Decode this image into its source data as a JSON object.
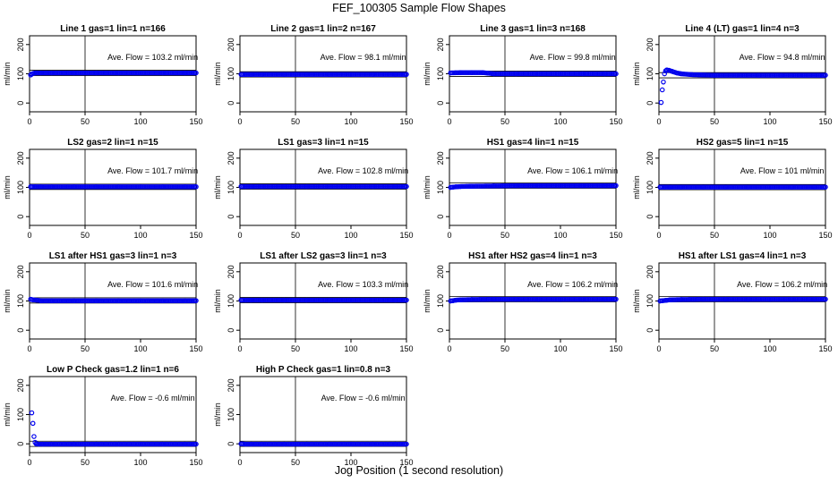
{
  "figure": {
    "title": "FEF_100305  Sample Flow Shapes",
    "xlabel": "Jog Position (1 second resolution)"
  },
  "chart_data": [
    {
      "type": "scatter",
      "title": "Line 1 gas=1 lin=1 n=166",
      "ylabel": "ml/min",
      "annotation": "Ave. Flow = 103.2  ml/min",
      "xlim": [
        0,
        150
      ],
      "ylim": [
        -30,
        230
      ],
      "xticks": [
        0,
        50,
        100,
        150
      ],
      "yticks": [
        0,
        100,
        200
      ],
      "vline": 50,
      "hlines": [
        94,
        112
      ],
      "points": [
        [
          1,
          96
        ],
        [
          2,
          99
        ],
        [
          3,
          101
        ],
        [
          5,
          103
        ],
        [
          10,
          103
        ],
        [
          20,
          103
        ],
        [
          40,
          103
        ],
        [
          60,
          103
        ],
        [
          80,
          103
        ],
        [
          100,
          103
        ],
        [
          120,
          103
        ],
        [
          140,
          103
        ],
        [
          150,
          103
        ]
      ]
    },
    {
      "type": "scatter",
      "title": "Line 2 gas=1 lin=2 n=167",
      "ylabel": "ml/min",
      "annotation": "Ave. Flow = 98.1  ml/min",
      "xlim": [
        0,
        150
      ],
      "ylim": [
        -30,
        230
      ],
      "xticks": [
        0,
        50,
        100,
        150
      ],
      "yticks": [
        0,
        100,
        200
      ],
      "vline": 50,
      "hlines": [
        89,
        107
      ],
      "points": [
        [
          1,
          98
        ],
        [
          5,
          98
        ],
        [
          10,
          98
        ],
        [
          20,
          98
        ],
        [
          40,
          98
        ],
        [
          60,
          98
        ],
        [
          80,
          98
        ],
        [
          100,
          98
        ],
        [
          120,
          98
        ],
        [
          140,
          98
        ],
        [
          150,
          98
        ]
      ]
    },
    {
      "type": "scatter",
      "title": "Line 3 gas=1 lin=3 n=168",
      "ylabel": "ml/min",
      "annotation": "Ave. Flow = 99.8  ml/min",
      "xlim": [
        0,
        150
      ],
      "ylim": [
        -30,
        230
      ],
      "xticks": [
        0,
        50,
        100,
        150
      ],
      "yticks": [
        0,
        100,
        200
      ],
      "vline": 50,
      "hlines": [
        91,
        109
      ],
      "points": [
        [
          1,
          103
        ],
        [
          10,
          104
        ],
        [
          20,
          104
        ],
        [
          30,
          104
        ],
        [
          35,
          102
        ],
        [
          40,
          100
        ],
        [
          60,
          100
        ],
        [
          80,
          100
        ],
        [
          100,
          100
        ],
        [
          120,
          100
        ],
        [
          140,
          100
        ],
        [
          150,
          100
        ]
      ]
    },
    {
      "type": "scatter",
      "title": "Line 4 (LT) gas=1 lin=4 n=3",
      "ylabel": "ml/min",
      "annotation": "Ave. Flow = 94.8  ml/min",
      "xlim": [
        0,
        150
      ],
      "ylim": [
        -30,
        230
      ],
      "xticks": [
        0,
        50,
        100,
        150
      ],
      "yticks": [
        0,
        100,
        200
      ],
      "vline": 50,
      "hlines": [
        86,
        104
      ],
      "points": [
        [
          2,
          2
        ],
        [
          3,
          45
        ],
        [
          4,
          72
        ],
        [
          5,
          100
        ],
        [
          6,
          110
        ],
        [
          7,
          113
        ],
        [
          9,
          112
        ],
        [
          12,
          108
        ],
        [
          16,
          103
        ],
        [
          20,
          100
        ],
        [
          30,
          97
        ],
        [
          50,
          95
        ],
        [
          70,
          95
        ],
        [
          90,
          95
        ],
        [
          110,
          95
        ],
        [
          130,
          95
        ],
        [
          150,
          95
        ]
      ]
    },
    {
      "type": "scatter",
      "title": "LS2 gas=2 lin=1 n=15",
      "ylabel": "ml/min",
      "annotation": "Ave. Flow = 101.7  ml/min",
      "xlim": [
        0,
        150
      ],
      "ylim": [
        -30,
        230
      ],
      "xticks": [
        0,
        50,
        100,
        150
      ],
      "yticks": [
        0,
        100,
        200
      ],
      "vline": 50,
      "hlines": [
        93,
        111
      ],
      "points": [
        [
          1,
          102
        ],
        [
          5,
          102
        ],
        [
          10,
          102
        ],
        [
          20,
          102
        ],
        [
          40,
          102
        ],
        [
          60,
          102
        ],
        [
          80,
          102
        ],
        [
          100,
          102
        ],
        [
          120,
          102
        ],
        [
          140,
          102
        ],
        [
          150,
          102
        ]
      ]
    },
    {
      "type": "scatter",
      "title": "LS1 gas=3 lin=1 n=15",
      "ylabel": "ml/min",
      "annotation": "Ave. Flow = 102.8  ml/min",
      "xlim": [
        0,
        150
      ],
      "ylim": [
        -30,
        230
      ],
      "xticks": [
        0,
        50,
        100,
        150
      ],
      "yticks": [
        0,
        100,
        200
      ],
      "vline": 50,
      "hlines": [
        94,
        112
      ],
      "points": [
        [
          1,
          103
        ],
        [
          5,
          103
        ],
        [
          10,
          103
        ],
        [
          20,
          103
        ],
        [
          40,
          103
        ],
        [
          60,
          103
        ],
        [
          80,
          103
        ],
        [
          100,
          103
        ],
        [
          120,
          103
        ],
        [
          140,
          103
        ],
        [
          150,
          103
        ]
      ]
    },
    {
      "type": "scatter",
      "title": "HS1 gas=4 lin=1 n=15",
      "ylabel": "ml/min",
      "annotation": "Ave. Flow = 106.1  ml/min",
      "xlim": [
        0,
        150
      ],
      "ylim": [
        -30,
        230
      ],
      "xticks": [
        0,
        50,
        100,
        150
      ],
      "yticks": [
        0,
        100,
        200
      ],
      "vline": 50,
      "hlines": [
        97,
        115
      ],
      "points": [
        [
          1,
          100
        ],
        [
          3,
          101
        ],
        [
          6,
          102
        ],
        [
          10,
          103
        ],
        [
          20,
          104
        ],
        [
          40,
          105
        ],
        [
          60,
          106
        ],
        [
          80,
          106
        ],
        [
          100,
          106
        ],
        [
          120,
          106
        ],
        [
          140,
          106
        ],
        [
          150,
          106
        ]
      ]
    },
    {
      "type": "scatter",
      "title": "HS2 gas=5 lin=1 n=15",
      "ylabel": "ml/min",
      "annotation": "Ave. Flow = 101  ml/min",
      "xlim": [
        0,
        150
      ],
      "ylim": [
        -30,
        230
      ],
      "xticks": [
        0,
        50,
        100,
        150
      ],
      "yticks": [
        0,
        100,
        200
      ],
      "vline": 50,
      "hlines": [
        92,
        110
      ],
      "points": [
        [
          1,
          101
        ],
        [
          5,
          101
        ],
        [
          10,
          101
        ],
        [
          20,
          101
        ],
        [
          40,
          101
        ],
        [
          60,
          101
        ],
        [
          80,
          101
        ],
        [
          100,
          101
        ],
        [
          120,
          101
        ],
        [
          140,
          101
        ],
        [
          150,
          101
        ]
      ]
    },
    {
      "type": "scatter",
      "title": "LS1 after HS1 gas=3 lin=1 n=3",
      "ylabel": "ml/min",
      "annotation": "Ave. Flow = 101.6  ml/min",
      "xlim": [
        0,
        150
      ],
      "ylim": [
        -30,
        230
      ],
      "xticks": [
        0,
        50,
        100,
        150
      ],
      "yticks": [
        0,
        100,
        200
      ],
      "vline": 50,
      "hlines": [
        93,
        111
      ],
      "points": [
        [
          1,
          106
        ],
        [
          3,
          104
        ],
        [
          6,
          103
        ],
        [
          10,
          101
        ],
        [
          20,
          101
        ],
        [
          40,
          101
        ],
        [
          60,
          101
        ],
        [
          80,
          101
        ],
        [
          100,
          101
        ],
        [
          120,
          101
        ],
        [
          140,
          101
        ],
        [
          150,
          101
        ]
      ]
    },
    {
      "type": "scatter",
      "title": "LS1 after LS2 gas=3 lin=1 n=3",
      "ylabel": "ml/min",
      "annotation": "Ave. Flow = 103.3  ml/min",
      "xlim": [
        0,
        150
      ],
      "ylim": [
        -30,
        230
      ],
      "xticks": [
        0,
        50,
        100,
        150
      ],
      "yticks": [
        0,
        100,
        200
      ],
      "vline": 50,
      "hlines": [
        94,
        112
      ],
      "points": [
        [
          1,
          103
        ],
        [
          5,
          103
        ],
        [
          10,
          103
        ],
        [
          20,
          103
        ],
        [
          40,
          103
        ],
        [
          60,
          103
        ],
        [
          80,
          103
        ],
        [
          100,
          103
        ],
        [
          120,
          103
        ],
        [
          140,
          103
        ],
        [
          150,
          103
        ]
      ]
    },
    {
      "type": "scatter",
      "title": "HS1 after HS2 gas=4 lin=1 n=3",
      "ylabel": "ml/min",
      "annotation": "Ave. Flow = 106.2  ml/min",
      "xlim": [
        0,
        150
      ],
      "ylim": [
        -30,
        230
      ],
      "xticks": [
        0,
        50,
        100,
        150
      ],
      "yticks": [
        0,
        100,
        200
      ],
      "vline": 50,
      "hlines": [
        97,
        115
      ],
      "points": [
        [
          1,
          100
        ],
        [
          3,
          101
        ],
        [
          6,
          103
        ],
        [
          10,
          104
        ],
        [
          20,
          105
        ],
        [
          40,
          106
        ],
        [
          60,
          106
        ],
        [
          80,
          106
        ],
        [
          100,
          106
        ],
        [
          120,
          106
        ],
        [
          140,
          106
        ],
        [
          150,
          106
        ]
      ]
    },
    {
      "type": "scatter",
      "title": "HS1 after LS1 gas=4 lin=1 n=3",
      "ylabel": "ml/min",
      "annotation": "Ave. Flow = 106.2  ml/min",
      "xlim": [
        0,
        150
      ],
      "ylim": [
        -30,
        230
      ],
      "xticks": [
        0,
        50,
        100,
        150
      ],
      "yticks": [
        0,
        100,
        200
      ],
      "vline": 50,
      "hlines": [
        97,
        115
      ],
      "points": [
        [
          1,
          100
        ],
        [
          3,
          101
        ],
        [
          6,
          102
        ],
        [
          10,
          104
        ],
        [
          20,
          105
        ],
        [
          40,
          106
        ],
        [
          60,
          106
        ],
        [
          80,
          106
        ],
        [
          100,
          106
        ],
        [
          120,
          106
        ],
        [
          140,
          106
        ],
        [
          150,
          106
        ]
      ]
    },
    {
      "type": "scatter",
      "title": "Low P Check gas=1.2 lin=1 n=6",
      "ylabel": "ml/min",
      "annotation": "Ave. Flow = -0.6  ml/min",
      "xlim": [
        0,
        150
      ],
      "ylim": [
        -30,
        230
      ],
      "xticks": [
        0,
        50,
        100,
        150
      ],
      "yticks": [
        0,
        100,
        200
      ],
      "vline": 50,
      "hlines": [
        -9,
        9
      ],
      "points": [
        [
          2,
          106
        ],
        [
          3,
          70
        ],
        [
          4,
          25
        ],
        [
          5,
          5
        ],
        [
          6,
          0
        ],
        [
          8,
          -1
        ],
        [
          12,
          -1
        ],
        [
          20,
          -1
        ],
        [
          40,
          -1
        ],
        [
          60,
          -1
        ],
        [
          80,
          -1
        ],
        [
          100,
          -1
        ],
        [
          120,
          -1
        ],
        [
          140,
          -1
        ],
        [
          150,
          -1
        ]
      ]
    },
    {
      "type": "scatter",
      "title": "High P Check gas=1 lin=0.8 n=3",
      "ylabel": "ml/min",
      "annotation": "Ave. Flow = -0.6  ml/min",
      "xlim": [
        0,
        150
      ],
      "ylim": [
        -30,
        230
      ],
      "xticks": [
        0,
        50,
        100,
        150
      ],
      "yticks": [
        0,
        100,
        200
      ],
      "vline": 50,
      "hlines": [
        -9,
        9
      ],
      "points": [
        [
          1,
          0
        ],
        [
          5,
          -1
        ],
        [
          10,
          -1
        ],
        [
          20,
          -1
        ],
        [
          40,
          -1
        ],
        [
          60,
          -1
        ],
        [
          80,
          -1
        ],
        [
          100,
          -1
        ],
        [
          120,
          -1
        ],
        [
          140,
          -1
        ],
        [
          150,
          -1
        ]
      ]
    }
  ],
  "colors": {
    "points": "#0000ee",
    "axes": "#000000",
    "background": "#ffffff"
  }
}
